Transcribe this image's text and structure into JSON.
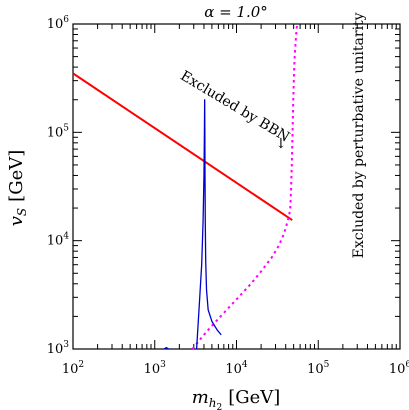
{
  "chart_data": {
    "type": "line",
    "title": "α = 1.0°",
    "xlabel": {
      "main": "m",
      "sub": "h",
      "subsub": "2",
      "unit": "[GeV]"
    },
    "ylabel": {
      "main": "v",
      "sub": "S",
      "unit": "[GeV]"
    },
    "x_scale": "log",
    "y_scale": "log",
    "xlim": [
      100,
      1000000
    ],
    "ylim": [
      1000,
      1000000
    ],
    "x_ticks": [
      {
        "value": 100,
        "base": "10",
        "exp": "2"
      },
      {
        "value": 1000,
        "base": "10",
        "exp": "3"
      },
      {
        "value": 10000,
        "base": "10",
        "exp": "4"
      },
      {
        "value": 100000,
        "base": "10",
        "exp": "5"
      },
      {
        "value": 1000000,
        "base": "10",
        "exp": "6"
      }
    ],
    "y_ticks": [
      {
        "value": 1000,
        "base": "10",
        "exp": "3"
      },
      {
        "value": 10000,
        "base": "10",
        "exp": "4"
      },
      {
        "value": 100000,
        "base": "10",
        "exp": "5"
      },
      {
        "value": 1000000,
        "base": "10",
        "exp": "6"
      }
    ],
    "grid": false,
    "series": [
      {
        "color": "#ff0000",
        "style": "solid",
        "x": [
          100,
          48000
        ],
        "y": [
          350000,
          15500
        ]
      },
      {
        "color": "#ff00ff",
        "style": "dotted",
        "x": [
          2900,
          3500,
          4500,
          6000,
          8000,
          11000,
          15000,
          20000,
          27000,
          33000,
          37000,
          40000,
          42000,
          44000,
          45500,
          46500,
          47500,
          48500,
          49500,
          50500,
          51500,
          53000,
          55000
        ],
        "y": [
          1000,
          1200,
          1500,
          1900,
          2400,
          3100,
          4000,
          5200,
          7000,
          9000,
          11000,
          13000,
          15000,
          17000,
          20000,
          30000,
          50000,
          100000,
          200000,
          350000,
          500000,
          700000,
          1000000
        ]
      },
      {
        "color": "#0000cc",
        "style": "solid",
        "x": [
          1300,
          1380,
          1480
        ],
        "y": [
          1000,
          1030,
          1000
        ]
      },
      {
        "color": "#0000cc",
        "style": "solid",
        "x": [
          3250,
          3500,
          3750,
          3900,
          4000,
          4050,
          4080,
          4100,
          4120,
          4150,
          4200,
          4300,
          4500,
          5000,
          5800,
          6500
        ],
        "y": [
          1000,
          2500,
          6000,
          15000,
          40000,
          100000,
          200000,
          100000,
          40000,
          15000,
          6500,
          3500,
          2300,
          1800,
          1500,
          1350
        ]
      }
    ],
    "annotations": [
      {
        "text": "Excluded by BBN",
        "arrow": "↓",
        "x": 9000,
        "y": 160000,
        "rotation": 31,
        "anchor_x": 470,
        "anchor_y": 150000
      },
      {
        "text": "Excluded by perturbative unitarity",
        "x": 180000,
        "y": 40000,
        "rotation": -90
      }
    ]
  }
}
